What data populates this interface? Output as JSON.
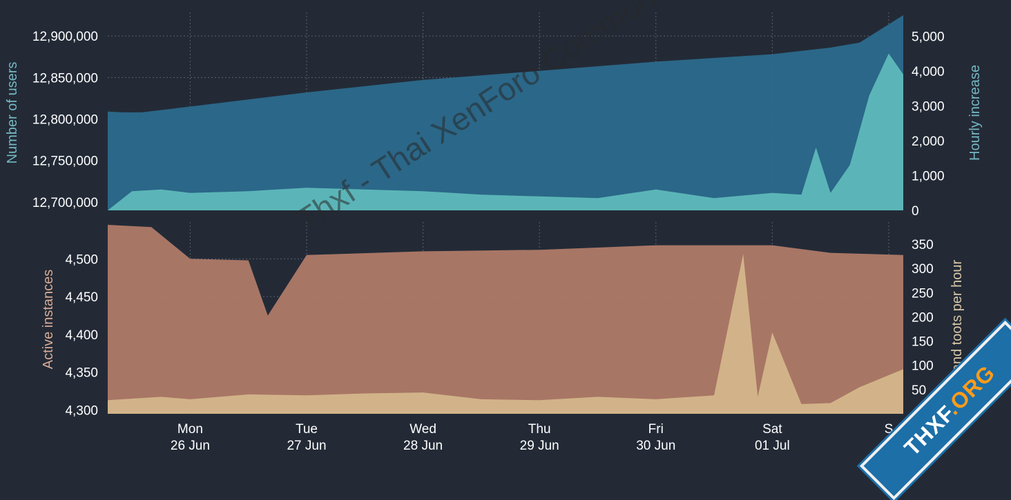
{
  "colors": {
    "background": "#232a36",
    "users_area": "#2c6a8d",
    "hourly_area": "#5fbcbc",
    "instances_area": "#b07a68",
    "toots_area": "#d6b98c",
    "users_label": "#74b9c4",
    "hourly_label": "#74b9c4",
    "instances_label": "#d9ab96",
    "toots_label": "#d9c7a6"
  },
  "watermark": "Thxf - Thai XenForo Community",
  "badge": {
    "left": "THXF",
    "right": ".ORG"
  },
  "x_ticks": [
    {
      "day": "Mon",
      "date": "26 Jun"
    },
    {
      "day": "Tue",
      "date": "27 Jun"
    },
    {
      "day": "Wed",
      "date": "28 Jun"
    },
    {
      "day": "Thu",
      "date": "29 Jun"
    },
    {
      "day": "Fri",
      "date": "30 Jun"
    },
    {
      "day": "Sat",
      "date": "01 Jul"
    },
    {
      "day": "S",
      "date": ""
    }
  ],
  "chart_data": [
    {
      "type": "area",
      "x": [
        "2023-06-25 07:00",
        "2023-06-25 10:00",
        "2023-06-25 14:00",
        "2023-06-26 00:00",
        "2023-06-27 00:00",
        "2023-06-28 00:00",
        "2023-06-29 00:00",
        "2023-06-30 00:00",
        "2023-07-01 00:00",
        "2023-07-01 12:00",
        "2023-07-01 18:00",
        "2023-07-02 03:00"
      ],
      "series": [
        {
          "name": "Number of users",
          "axis": "left",
          "values": [
            12809000,
            12808000,
            12808000,
            12815000,
            12832000,
            12847000,
            12858000,
            12869000,
            12878000,
            12886000,
            12892000,
            12925000
          ]
        }
      ],
      "left_axis": {
        "label": "Number of users",
        "ylim": [
          12690000,
          12925000
        ],
        "ticks": [
          "12,700,000",
          "12,750,000",
          "12,800,000",
          "12,850,000",
          "12,900,000"
        ]
      },
      "right_axis": {
        "label": "Hourly increase",
        "ylim": [
          0,
          5600
        ],
        "ticks": [
          "0",
          "1,000",
          "2,000",
          "3,000",
          "4,000",
          "5,000"
        ]
      },
      "hourly_increase": {
        "name": "Hourly increase",
        "axis": "right",
        "x": [
          "2023-06-25 07:00",
          "2023-06-25 12:00",
          "2023-06-25 18:00",
          "2023-06-26 00:00",
          "2023-06-26 12:00",
          "2023-06-27 00:00",
          "2023-06-27 12:00",
          "2023-06-28 00:00",
          "2023-06-28 12:00",
          "2023-06-29 00:00",
          "2023-06-29 12:00",
          "2023-06-30 00:00",
          "2023-06-30 12:00",
          "2023-07-01 00:00",
          "2023-07-01 06:00",
          "2023-07-01 09:00",
          "2023-07-01 12:00",
          "2023-07-01 16:00",
          "2023-07-01 20:00",
          "2023-07-02 00:00",
          "2023-07-02 03:00"
        ],
        "values": [
          0,
          550,
          600,
          500,
          550,
          650,
          600,
          550,
          450,
          400,
          350,
          600,
          350,
          500,
          450,
          1800,
          500,
          1300,
          3300,
          4500,
          3900
        ]
      },
      "grid": true
    },
    {
      "type": "area",
      "x": [
        "2023-06-25 07:00",
        "2023-06-25 16:00",
        "2023-06-26 00:00",
        "2023-06-26 12:00",
        "2023-06-26 16:00",
        "2023-06-27 00:00",
        "2023-06-28 00:00",
        "2023-06-29 00:00",
        "2023-06-30 00:00",
        "2023-07-01 00:00",
        "2023-07-01 12:00",
        "2023-07-02 03:00"
      ],
      "series": [
        {
          "name": "Active instances",
          "axis": "left",
          "values": [
            4545,
            4542,
            4500,
            4498,
            4425,
            4505,
            4510,
            4512,
            4518,
            4518,
            4508,
            4505
          ]
        }
      ],
      "left_axis": {
        "label": "Active instances",
        "ylim": [
          4295,
          4545
        ],
        "ticks": [
          "4,300",
          "4,350",
          "4,400",
          "4,450",
          "4,500"
        ]
      },
      "right_axis": {
        "label": "sand toots per hour",
        "ylim": [
          0,
          390
        ],
        "ticks": [
          "50",
          "100",
          "150",
          "200",
          "250",
          "300",
          "350"
        ]
      },
      "toots_per_hour": {
        "name": "sand toots per hour",
        "axis": "right",
        "x": [
          "2023-06-25 07:00",
          "2023-06-25 18:00",
          "2023-06-26 00:00",
          "2023-06-26 12:00",
          "2023-06-27 00:00",
          "2023-06-27 12:00",
          "2023-06-28 00:00",
          "2023-06-28 12:00",
          "2023-06-29 00:00",
          "2023-06-29 12:00",
          "2023-06-30 00:00",
          "2023-06-30 12:00",
          "2023-06-30 18:00",
          "2023-06-30 21:00",
          "2023-07-01 00:00",
          "2023-07-01 06:00",
          "2023-07-01 12:00",
          "2023-07-01 18:00",
          "2023-07-02 03:00"
        ],
        "values": [
          28,
          35,
          30,
          40,
          38,
          42,
          44,
          30,
          28,
          35,
          30,
          38,
          330,
          35,
          168,
          20,
          22,
          55,
          92
        ]
      },
      "grid": true
    }
  ]
}
